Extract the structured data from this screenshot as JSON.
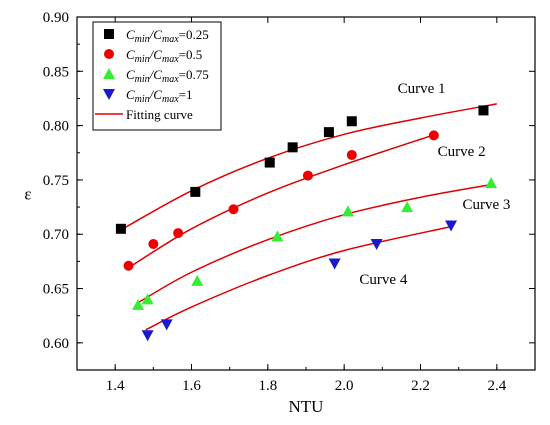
{
  "chart_data": {
    "type": "scatter",
    "xlabel": "NTU",
    "ylabel": "ε",
    "xlim": [
      1.3,
      2.5
    ],
    "ylim": [
      0.575,
      0.9
    ],
    "x_ticks": [
      1.4,
      1.6,
      1.8,
      2.0,
      2.2,
      2.4
    ],
    "y_ticks": [
      0.6,
      0.65,
      0.7,
      0.75,
      0.8,
      0.85,
      0.9
    ],
    "x_tick_labels": [
      "1.4",
      "1.6",
      "1.8",
      "2.0",
      "2.2",
      "2.4"
    ],
    "y_tick_labels": [
      "0.60",
      "0.65",
      "0.70",
      "0.75",
      "0.80",
      "0.85",
      "0.90"
    ],
    "legend_position": "top-left",
    "legend": [
      {
        "prefix": "C",
        "sub1": "min",
        "mid": "/C",
        "sub2": "max",
        "suffix": "=0.25",
        "marker": "square",
        "color": "#000000"
      },
      {
        "prefix": "C",
        "sub1": "min",
        "mid": "/C",
        "sub2": "max",
        "suffix": "=0.5",
        "marker": "circle",
        "color": "#ee0000"
      },
      {
        "prefix": "C",
        "sub1": "min",
        "mid": "/C",
        "sub2": "max",
        "suffix": "=0.75",
        "marker": "triangle-up",
        "color": "#33ee33"
      },
      {
        "prefix": "C",
        "sub1": "min",
        "mid": "/C",
        "sub2": "max",
        "suffix": "=1",
        "marker": "triangle-down",
        "color": "#1a1acc"
      },
      {
        "text": "Fitting curve",
        "marker": "line",
        "color": "#dd0000"
      }
    ],
    "series": [
      {
        "marker": "square",
        "color": "#000000",
        "points": [
          [
            1.415,
            0.705
          ],
          [
            1.61,
            0.739
          ],
          [
            1.805,
            0.766
          ],
          [
            1.865,
            0.78
          ],
          [
            1.96,
            0.794
          ],
          [
            2.02,
            0.804
          ],
          [
            2.365,
            0.814
          ]
        ],
        "fit": [
          [
            1.41,
            0.703
          ],
          [
            1.6,
            0.74
          ],
          [
            1.8,
            0.77
          ],
          [
            2.0,
            0.792
          ],
          [
            2.2,
            0.807
          ],
          [
            2.4,
            0.82
          ]
        ],
        "fit_color": "#dd0000",
        "curve_label": "Curve 1",
        "curve_label_pos": [
          2.14,
          0.83
        ]
      },
      {
        "marker": "circle",
        "color": "#ee0000",
        "points": [
          [
            1.435,
            0.671
          ],
          [
            1.5,
            0.691
          ],
          [
            1.565,
            0.701
          ],
          [
            1.71,
            0.723
          ],
          [
            1.905,
            0.754
          ],
          [
            2.02,
            0.773
          ],
          [
            2.235,
            0.791
          ]
        ],
        "fit": [
          [
            1.43,
            0.668
          ],
          [
            1.6,
            0.705
          ],
          [
            1.8,
            0.738
          ],
          [
            2.0,
            0.764
          ],
          [
            2.24,
            0.792
          ]
        ],
        "fit_color": "#dd0000",
        "curve_label": "Curve 2",
        "curve_label_pos": [
          2.245,
          0.772
        ]
      },
      {
        "marker": "triangle-up",
        "color": "#33ee33",
        "points": [
          [
            1.46,
            0.635
          ],
          [
            1.485,
            0.64
          ],
          [
            1.615,
            0.657
          ],
          [
            1.825,
            0.698
          ],
          [
            2.01,
            0.721
          ],
          [
            2.165,
            0.725
          ],
          [
            2.385,
            0.747
          ]
        ],
        "fit": [
          [
            1.46,
            0.637
          ],
          [
            1.6,
            0.665
          ],
          [
            1.8,
            0.695
          ],
          [
            2.0,
            0.718
          ],
          [
            2.2,
            0.734
          ],
          [
            2.39,
            0.746
          ]
        ],
        "fit_color": "#dd0000",
        "curve_label": "Curve 3",
        "curve_label_pos": [
          2.31,
          0.723
        ]
      },
      {
        "marker": "triangle-down",
        "color": "#1a1acc",
        "points": [
          [
            1.485,
            0.607
          ],
          [
            1.535,
            0.617
          ],
          [
            1.975,
            0.673
          ],
          [
            2.085,
            0.691
          ],
          [
            2.28,
            0.708
          ]
        ],
        "fit": [
          [
            1.48,
            0.612
          ],
          [
            1.6,
            0.633
          ],
          [
            1.8,
            0.662
          ],
          [
            2.0,
            0.685
          ],
          [
            2.28,
            0.707
          ]
        ],
        "fit_color": "#dd0000",
        "curve_label": "Curve 4",
        "curve_label_pos": [
          2.04,
          0.654
        ]
      }
    ]
  }
}
